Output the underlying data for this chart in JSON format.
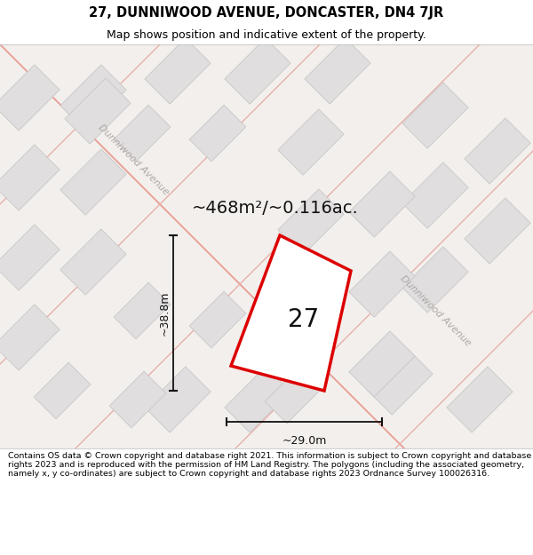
{
  "title": "27, DUNNIWOOD AVENUE, DONCASTER, DN4 7JR",
  "subtitle": "Map shows position and indicative extent of the property.",
  "area_label": "~468m²/~0.116ac.",
  "plot_number": "27",
  "width_label": "~29.0m",
  "height_label": "~38.8m",
  "footer": "Contains OS data © Crown copyright and database right 2021. This information is subject to Crown copyright and database rights 2023 and is reproduced with the permission of HM Land Registry. The polygons (including the associated geometry, namely x, y co-ordinates) are subject to Crown copyright and database rights 2023 Ordnance Survey 100026316.",
  "map_bg": "#f2efec",
  "road_line_color": "#e8a8a0",
  "block_color": "#e0dede",
  "block_outline": "#c8c8c8",
  "plot_fill": "#ffffff",
  "plot_outline": "#dd0000",
  "road_label_color": "#b0a8a8",
  "street_name": "Dunniwood Avenue",
  "title_fontsize": 10.5,
  "subtitle_fontsize": 9,
  "area_fontsize": 14,
  "plot_label_fontsize": 20,
  "dim_fontsize": 9,
  "footer_fontsize": 6.8
}
